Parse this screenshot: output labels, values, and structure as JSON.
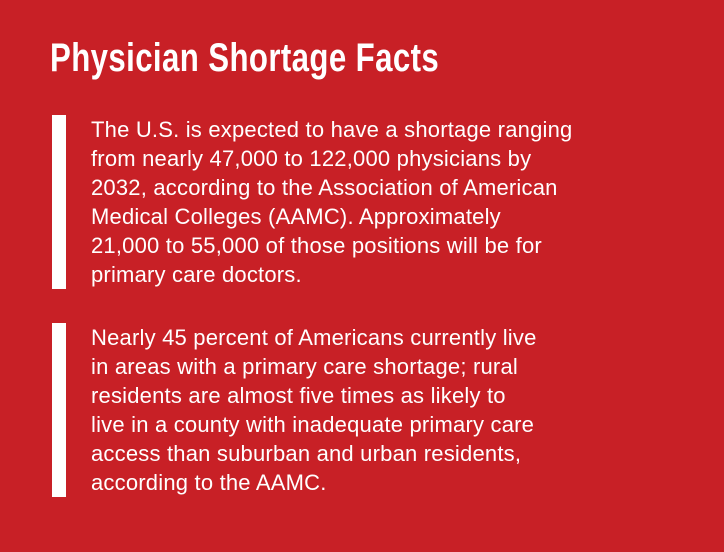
{
  "header": {
    "title": "Physician Shortage Facts"
  },
  "facts": [
    {
      "lines": [
        "The U.S. is expected to have a shortage ranging",
        "from nearly 47,000 to 122,000 physicians by",
        "2032, according to the Association of American",
        "Medical Colleges (AAMC). Approximately",
        "21,000 to 55,000 of those positions will be for",
        "primary care doctors."
      ]
    },
    {
      "lines": [
        "Nearly 45 percent of Americans currently live",
        "in areas with a primary care shortage; rural",
        "residents are almost five times as likely to",
        "live in a county with inadequate primary care",
        "access than suburban and urban residents,",
        "according to the AAMC."
      ]
    }
  ]
}
